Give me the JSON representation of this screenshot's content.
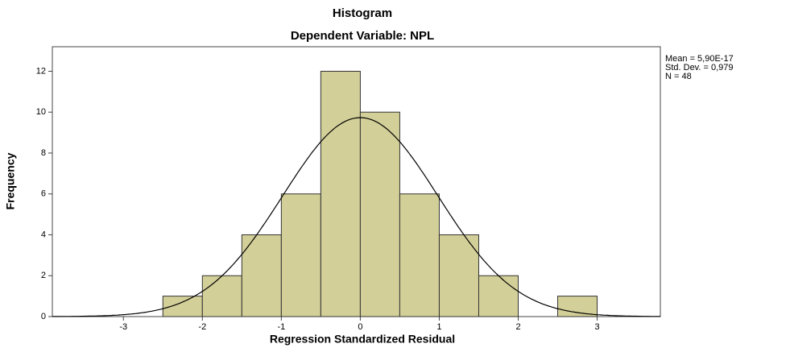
{
  "chart_data": {
    "type": "histogram",
    "title": "Histogram",
    "subtitle": "Dependent Variable: NPL",
    "x_label": "Regression Standardized Residual",
    "y_label": "Frequency",
    "annotations": [
      "Mean = 5,90E-17",
      "Std. Dev. = 0,979",
      "N = 48"
    ],
    "bins": [
      -2.5,
      -2,
      -1.5,
      -1,
      -0.5,
      0,
      0.5,
      1,
      1.5,
      2,
      2.5,
      3
    ],
    "values": [
      1,
      2,
      4,
      6,
      12,
      10,
      6,
      4,
      2,
      0,
      1
    ],
    "color": "#d3cf98",
    "normal_curve": true,
    "xlim": [
      -3.9,
      3.8
    ],
    "xticks": [
      -3,
      -2,
      -1,
      0,
      1,
      2,
      3
    ],
    "ylim": [
      0,
      13.2
    ],
    "yticks": [
      0,
      2,
      4,
      6,
      8,
      10,
      12
    ]
  }
}
